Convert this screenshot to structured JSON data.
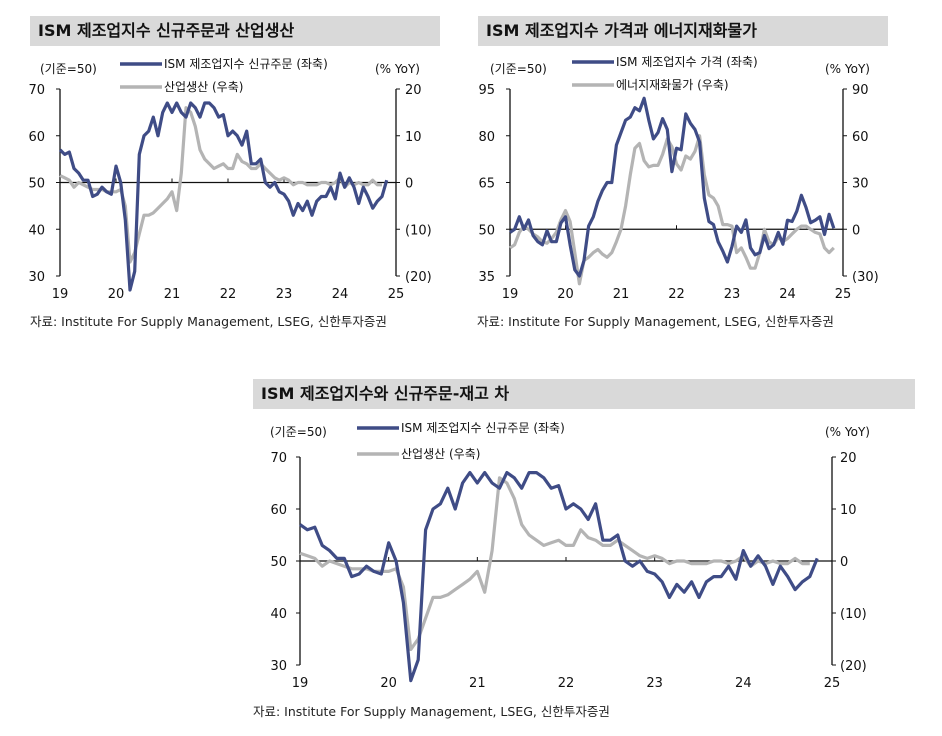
{
  "colors": {
    "primary": "#3f4c86",
    "secondary": "#b4b4b4",
    "title_bg": "#d9d9d9"
  },
  "source": "자료: Institute For Supply Management, LSEG, 신한투자증권",
  "chart_data": [
    {
      "type": "line",
      "title": "ISM 제조업지수 신규주문과 산업생산",
      "left_unit": "(기준=50)",
      "right_unit": "(% YoY)",
      "x_start": "2019-01",
      "x_frequency": "monthly",
      "x_ticks": [
        "19",
        "20",
        "21",
        "22",
        "23",
        "24",
        "25"
      ],
      "left_ticks": [
        "70",
        "60",
        "50",
        "40",
        "30"
      ],
      "left_range": [
        30,
        70
      ],
      "right_ticks": [
        "20",
        "10",
        "0",
        "(10)",
        "(20)"
      ],
      "right_range": [
        -20,
        20
      ],
      "reference_line": 50,
      "series": [
        {
          "name": "ISM 제조업지수 신규주문 (좌축)",
          "axis": "left",
          "values": [
            57,
            56,
            56.5,
            53,
            52,
            50.5,
            50.5,
            47,
            47.5,
            49,
            48,
            47.5,
            53.5,
            50,
            42,
            27,
            31,
            56,
            60,
            61,
            64,
            60,
            65,
            67,
            65,
            67,
            65,
            64,
            67,
            66,
            64,
            67,
            67,
            66,
            64,
            64.5,
            60,
            61,
            60,
            58,
            61,
            54,
            54,
            55,
            50,
            49,
            50,
            48,
            47.5,
            46,
            43,
            45.5,
            44,
            46,
            43,
            46,
            47,
            47,
            49,
            46.5,
            52,
            49,
            51,
            49,
            45.5,
            49,
            47,
            44.5,
            46,
            47,
            50.5
          ]
        },
        {
          "name": "산업생산 (우축)",
          "axis": "right",
          "values": [
            1.5,
            1,
            0.5,
            -1,
            0,
            -0.5,
            -1,
            -1.5,
            -1.5,
            -1.5,
            -2,
            -2,
            -2,
            -1.5,
            -5,
            -17,
            -15,
            -11,
            -7,
            -7,
            -6.5,
            -5.5,
            -4.5,
            -3.5,
            -2,
            -6,
            2,
            16,
            15,
            12,
            7,
            5,
            4,
            3,
            3.5,
            4,
            3,
            3,
            6,
            4.5,
            4,
            3,
            3,
            4,
            3,
            2,
            1,
            0.5,
            1,
            0.5,
            -0.5,
            0,
            0,
            -0.5,
            -0.5,
            -0.5,
            0,
            0,
            -0.5,
            0,
            1,
            -1,
            0,
            -0.5,
            0,
            -0.5,
            -0.5,
            0.5,
            -0.5,
            -0.5
          ]
        }
      ]
    },
    {
      "type": "line",
      "title": "ISM 제조업지수 가격과 에너지재화물가",
      "left_unit": "(기준=50)",
      "right_unit": "(% YoY)",
      "x_start": "2019-01",
      "x_frequency": "monthly",
      "x_ticks": [
        "19",
        "20",
        "21",
        "22",
        "23",
        "24",
        "25"
      ],
      "left_ticks": [
        "95",
        "80",
        "65",
        "50",
        "35"
      ],
      "left_range": [
        35,
        95
      ],
      "right_ticks": [
        "90",
        "60",
        "30",
        "0",
        "(30)"
      ],
      "right_range": [
        -30,
        90
      ],
      "reference_line": 50,
      "series": [
        {
          "name": "ISM 제조업지수 가격 (좌축)",
          "axis": "left",
          "values": [
            49,
            50,
            54,
            50,
            53,
            48,
            46,
            45,
            49.5,
            46,
            46,
            52,
            54,
            45,
            37,
            35,
            40,
            51,
            54,
            59,
            62.5,
            65,
            65,
            77,
            81,
            85,
            86,
            89,
            88,
            92,
            85,
            79,
            81,
            85.5,
            82,
            68.5,
            76,
            75.5,
            87,
            84,
            82,
            78,
            60,
            52.5,
            51.5,
            46,
            43,
            39.5,
            44.5,
            51,
            49,
            53,
            44,
            41.8,
            42.5,
            48,
            43.8,
            45,
            49,
            45.2,
            52.9,
            52.5,
            55.8,
            60.9,
            57,
            52.1,
            52.9,
            54,
            48.3,
            54.8,
            50.3
          ]
        },
        {
          "name": "에너지재화물가 (우축)",
          "axis": "right",
          "values": [
            -12,
            -10,
            -2,
            2,
            0,
            -3,
            -5,
            -8,
            -9,
            -6,
            -2,
            6,
            12,
            5,
            -15,
            -35,
            -20,
            -18,
            -15,
            -13,
            -16,
            -18,
            -15,
            -8,
            0,
            15,
            35,
            52,
            55,
            44,
            40,
            41,
            41,
            48,
            58,
            53,
            42,
            38,
            47,
            45,
            50,
            60,
            35,
            22,
            20,
            15,
            3,
            3,
            2,
            -15,
            -12,
            -18,
            -25,
            -25,
            -15,
            0,
            -8,
            -10,
            -5,
            -8,
            -6,
            -3,
            0,
            2,
            2,
            0,
            -2,
            -3,
            -12,
            -15,
            -12
          ]
        }
      ]
    },
    {
      "type": "line",
      "title": "ISM 제조업지수와 신규주문-재고 차",
      "left_unit": "(기준=50)",
      "right_unit": "(% YoY)",
      "x_start": "2019-01",
      "x_frequency": "monthly",
      "x_ticks": [
        "19",
        "20",
        "21",
        "22",
        "23",
        "24",
        "25"
      ],
      "left_ticks": [
        "70",
        "60",
        "50",
        "40",
        "30"
      ],
      "left_range": [
        30,
        70
      ],
      "right_ticks": [
        "20",
        "10",
        "0",
        "(10)",
        "(20)"
      ],
      "right_range": [
        -20,
        20
      ],
      "reference_line": 50,
      "series": [
        {
          "name": "ISM 제조업지수 신규주문 (좌축)",
          "axis": "left",
          "values": [
            57,
            56,
            56.5,
            53,
            52,
            50.5,
            50.5,
            47,
            47.5,
            49,
            48,
            47.5,
            53.5,
            50,
            42,
            27,
            31,
            56,
            60,
            61,
            64,
            60,
            65,
            67,
            65,
            67,
            65,
            64,
            67,
            66,
            64,
            67,
            67,
            66,
            64,
            64.5,
            60,
            61,
            60,
            58,
            61,
            54,
            54,
            55,
            50,
            49,
            50,
            48,
            47.5,
            46,
            43,
            45.5,
            44,
            46,
            43,
            46,
            47,
            47,
            49,
            46.5,
            52,
            49,
            51,
            49,
            45.5,
            49,
            47,
            44.5,
            46,
            47,
            50.5
          ]
        },
        {
          "name": "산업생산 (우축)",
          "axis": "right",
          "values": [
            1.5,
            1,
            0.5,
            -1,
            0,
            -0.5,
            -1,
            -1.5,
            -1.5,
            -1.5,
            -2,
            -2,
            -2,
            -1.5,
            -5,
            -17,
            -15,
            -11,
            -7,
            -7,
            -6.5,
            -5.5,
            -4.5,
            -3.5,
            -2,
            -6,
            2,
            16,
            15,
            12,
            7,
            5,
            4,
            3,
            3.5,
            4,
            3,
            3,
            6,
            4.5,
            4,
            3,
            3,
            4,
            3,
            2,
            1,
            0.5,
            1,
            0.5,
            -0.5,
            0,
            0,
            -0.5,
            -0.5,
            -0.5,
            0,
            0,
            -0.5,
            0,
            1,
            -1,
            0,
            -0.5,
            0,
            -0.5,
            -0.5,
            0.5,
            -0.5,
            -0.5
          ]
        }
      ]
    }
  ]
}
